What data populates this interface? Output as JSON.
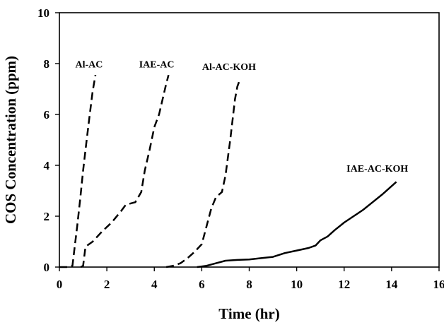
{
  "chart_data": {
    "type": "line",
    "xlabel": "Time (hr)",
    "ylabel": "COS Concentration (ppm)",
    "xlim": [
      0,
      16
    ],
    "ylim": [
      0,
      10
    ],
    "xticks": [
      "0",
      "2",
      "4",
      "6",
      "8",
      "10",
      "12",
      "14",
      "16"
    ],
    "yticks": [
      "0",
      "2",
      "4",
      "6",
      "8",
      "10"
    ],
    "grid": false,
    "legend": "none",
    "series": [
      {
        "name": "Al-AC",
        "style": "dashed",
        "color": "#000000",
        "points": [
          [
            0.0,
            0.0
          ],
          [
            0.35,
            0.0
          ],
          [
            0.55,
            0.05
          ],
          [
            0.62,
            0.6
          ],
          [
            0.75,
            1.6
          ],
          [
            0.88,
            2.7
          ],
          [
            1.0,
            3.8
          ],
          [
            1.15,
            5.0
          ],
          [
            1.28,
            6.0
          ],
          [
            1.4,
            6.9
          ],
          [
            1.52,
            7.55
          ]
        ]
      },
      {
        "name": "IAE-AC",
        "style": "dashed",
        "color": "#000000",
        "points": [
          [
            0.9,
            0.0
          ],
          [
            1.0,
            0.05
          ],
          [
            1.1,
            0.8
          ],
          [
            1.4,
            1.0
          ],
          [
            1.8,
            1.4
          ],
          [
            2.2,
            1.75
          ],
          [
            2.6,
            2.2
          ],
          [
            2.8,
            2.45
          ],
          [
            3.2,
            2.55
          ],
          [
            3.45,
            2.95
          ],
          [
            3.6,
            3.8
          ],
          [
            3.8,
            4.6
          ],
          [
            4.0,
            5.5
          ],
          [
            4.2,
            6.0
          ],
          [
            4.4,
            6.8
          ],
          [
            4.5,
            7.2
          ],
          [
            4.6,
            7.55
          ]
        ]
      },
      {
        "name": "Al-AC-KOH",
        "style": "dashed",
        "color": "#000000",
        "points": [
          [
            4.5,
            0.0
          ],
          [
            4.8,
            0.05
          ],
          [
            5.1,
            0.15
          ],
          [
            5.4,
            0.35
          ],
          [
            5.7,
            0.6
          ],
          [
            6.0,
            0.9
          ],
          [
            6.2,
            1.6
          ],
          [
            6.4,
            2.3
          ],
          [
            6.6,
            2.75
          ],
          [
            6.85,
            2.95
          ],
          [
            7.0,
            3.6
          ],
          [
            7.1,
            4.3
          ],
          [
            7.2,
            5.0
          ],
          [
            7.3,
            5.8
          ],
          [
            7.4,
            6.6
          ],
          [
            7.5,
            7.1
          ],
          [
            7.6,
            7.35
          ]
        ]
      },
      {
        "name": "IAE-AC-KOH",
        "style": "solid",
        "color": "#000000",
        "points": [
          [
            5.8,
            0.0
          ],
          [
            6.2,
            0.05
          ],
          [
            6.6,
            0.15
          ],
          [
            7.0,
            0.25
          ],
          [
            7.5,
            0.28
          ],
          [
            8.0,
            0.3
          ],
          [
            8.5,
            0.35
          ],
          [
            9.0,
            0.4
          ],
          [
            9.5,
            0.55
          ],
          [
            10.0,
            0.65
          ],
          [
            10.5,
            0.75
          ],
          [
            10.8,
            0.85
          ],
          [
            11.0,
            1.05
          ],
          [
            11.3,
            1.2
          ],
          [
            11.6,
            1.45
          ],
          [
            12.0,
            1.75
          ],
          [
            12.4,
            2.0
          ],
          [
            12.8,
            2.25
          ],
          [
            13.2,
            2.55
          ],
          [
            13.6,
            2.85
          ],
          [
            13.9,
            3.1
          ],
          [
            14.2,
            3.35
          ]
        ]
      }
    ],
    "annotations": [
      {
        "text": "Al-AC",
        "x": 1.25,
        "y": 7.85
      },
      {
        "text": "IAE-AC",
        "x": 4.1,
        "y": 7.85
      },
      {
        "text": "Al-AC-KOH",
        "x": 7.15,
        "y": 7.75
      },
      {
        "text": "IAE-AC-KOH",
        "x": 13.4,
        "y": 3.75
      }
    ]
  }
}
